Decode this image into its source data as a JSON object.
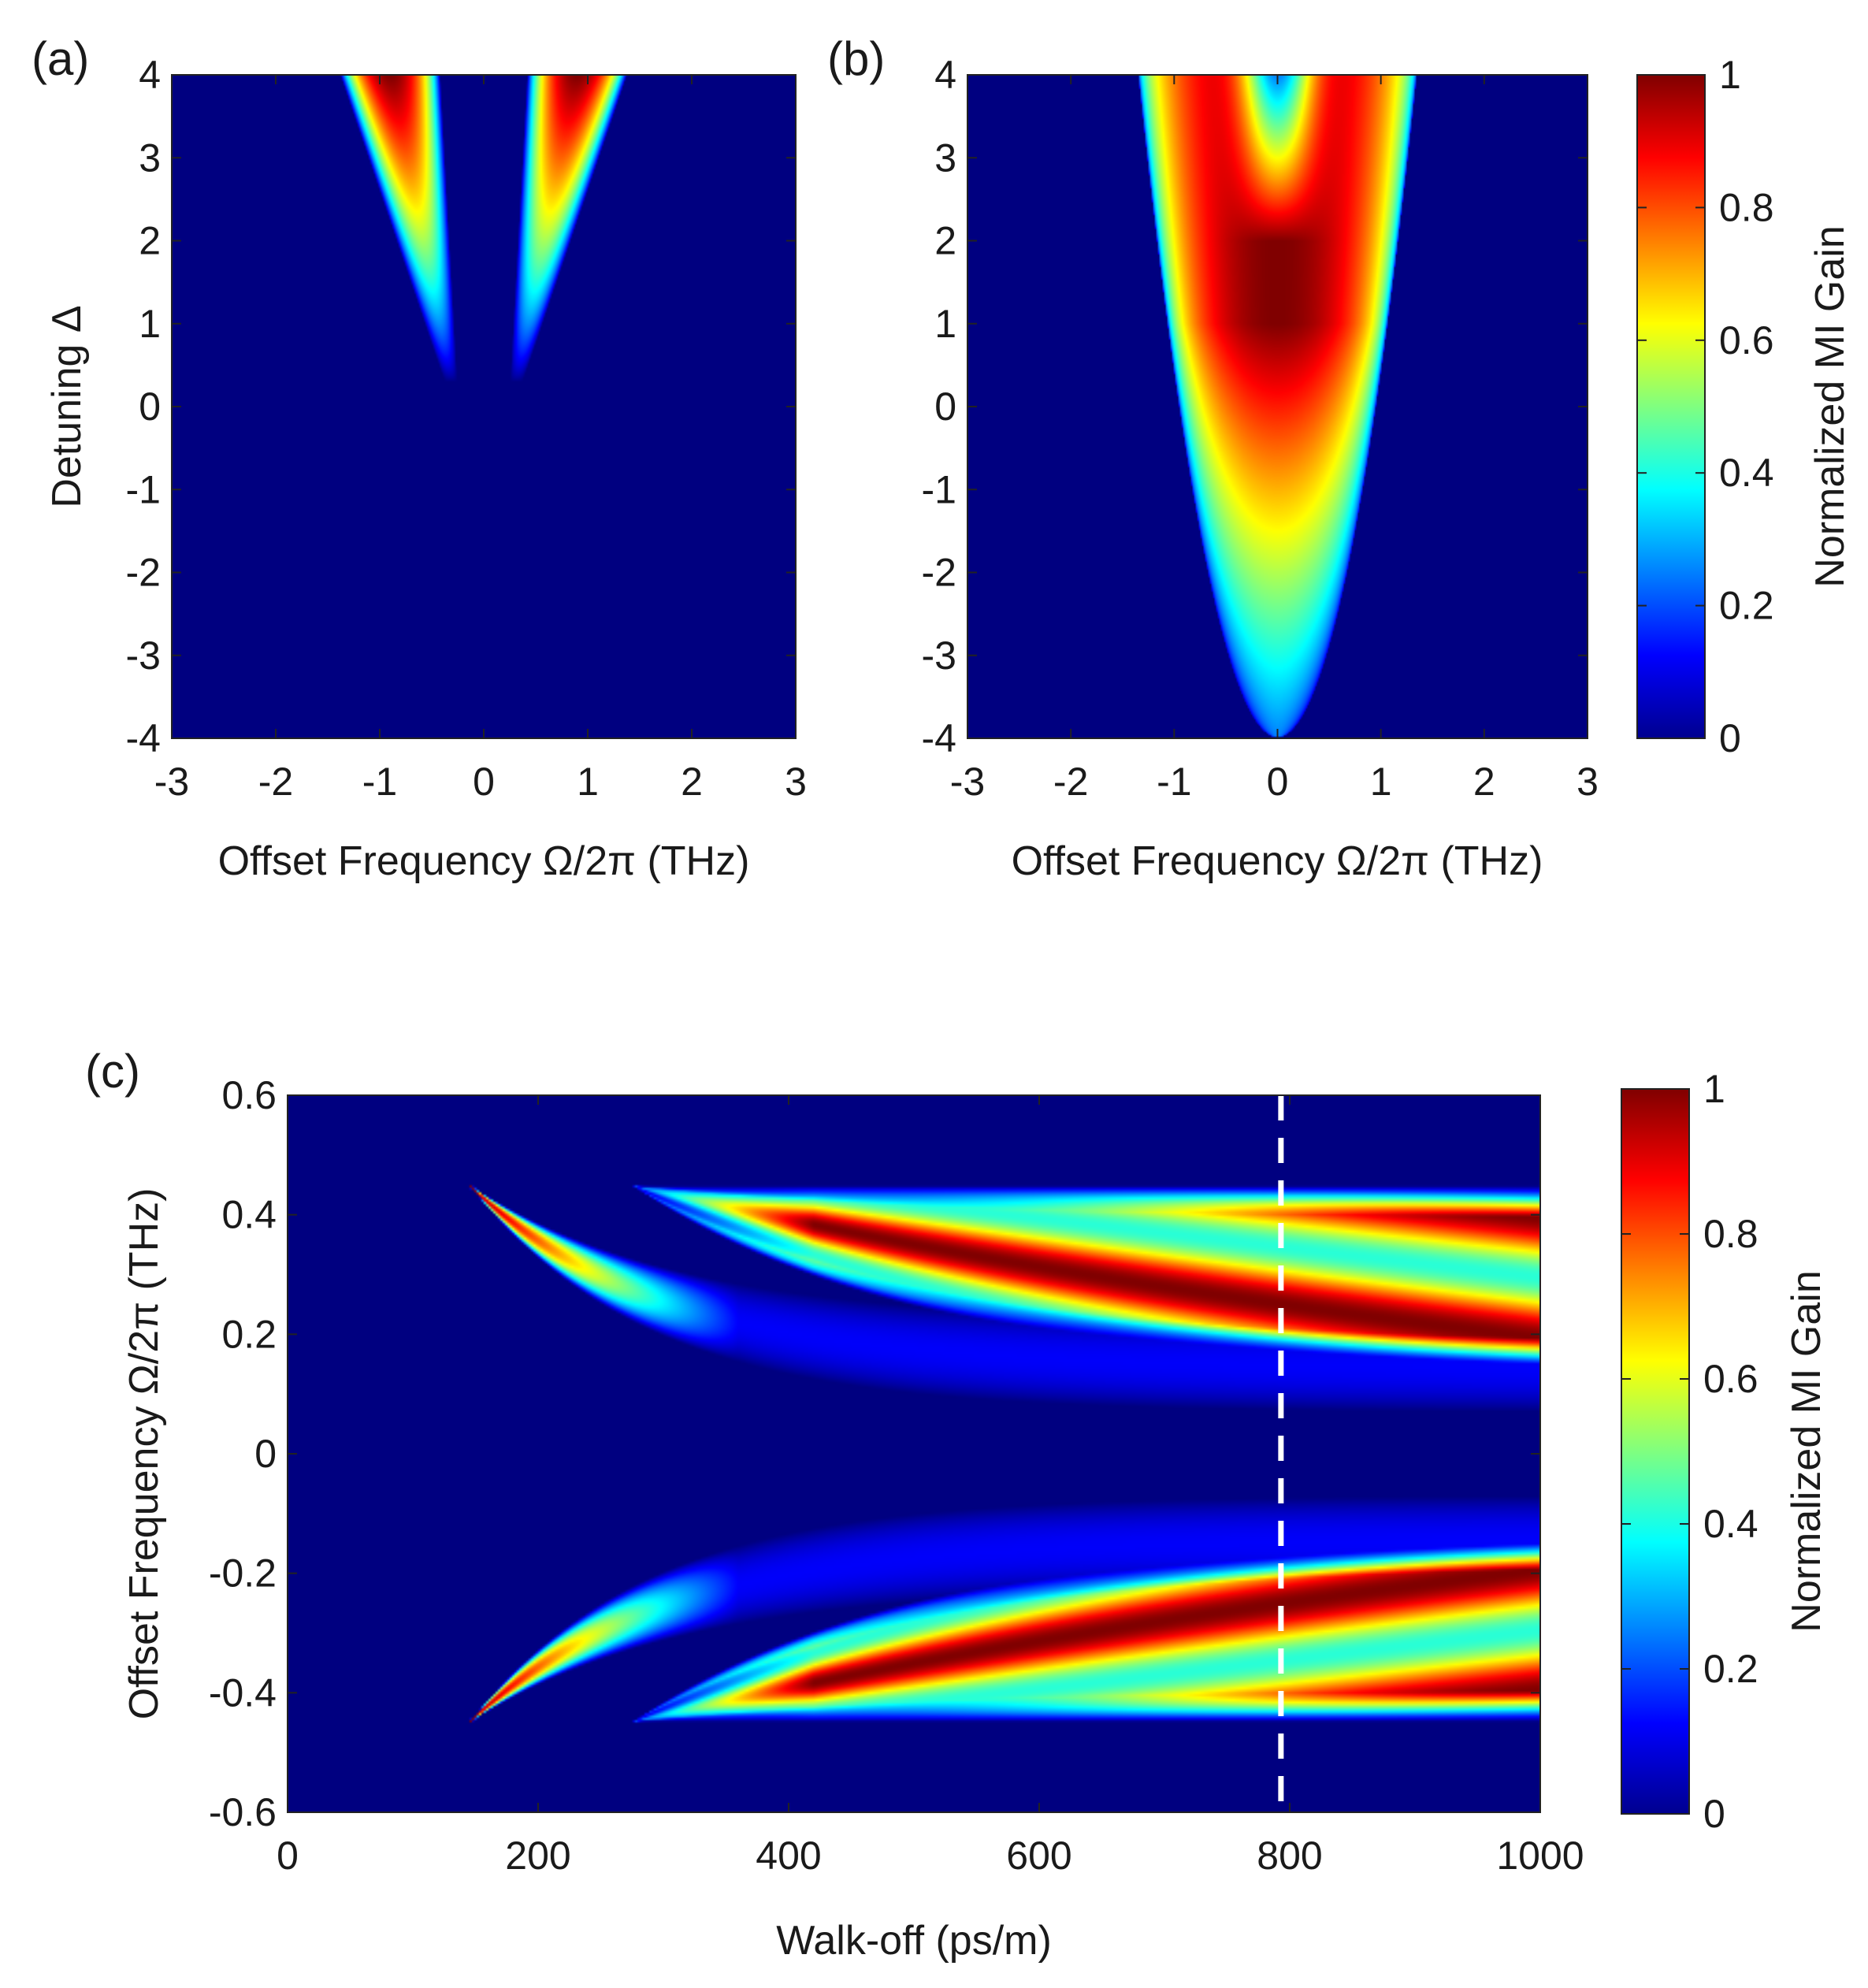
{
  "chart_data": [
    {
      "panel": "(a)",
      "type": "heatmap",
      "xlabel": "Offset Frequency  Ω/2π  (THz)",
      "ylabel": "Detuning  Δ",
      "xlim": [
        -3,
        3
      ],
      "ylim": [
        -4,
        4
      ],
      "x_ticks": [
        "-3",
        "-2",
        "-1",
        "0",
        "1",
        "2",
        "3"
      ],
      "y_ticks": [
        "4",
        "3",
        "2",
        "1",
        "0",
        "-1",
        "-2",
        "-3",
        "-4"
      ],
      "description_of_data": "Two gain lobes centred near ±0.9 THz at Δ=4, narrowing and fading toward Δ≈0.3; zero gain near Ω=0 and for Δ<0.3",
      "lobes": [
        {
          "peak_center_x": -0.9,
          "peak_y": 4,
          "onset_y": 0.3,
          "peak_value": 1.0
        },
        {
          "peak_center_x": 0.9,
          "peak_y": 4,
          "onset_y": 0.3,
          "peak_value": 1.0
        }
      ]
    },
    {
      "panel": "(b)",
      "type": "heatmap",
      "xlabel": "Offset Frequency  Ω/2π  (THz)",
      "ylabel": "",
      "xlim": [
        -3,
        3
      ],
      "ylim": [
        -4,
        4
      ],
      "x_ticks": [
        "-3",
        "-2",
        "-1",
        "0",
        "1",
        "2",
        "3"
      ],
      "y_ticks": [
        "4",
        "3",
        "2",
        "1",
        "0",
        "-1",
        "-2",
        "-3",
        "-4"
      ],
      "description_of_data": "Single parabolic gain region, edges from Ω≈±1.35 THz at Δ=4 down to Ω=0 at Δ=-4; maximum (1.0) near centre, small dip at Ω=0 for Δ>2",
      "edge_half_width_at_top": 1.35,
      "vertex_y": -4,
      "peak_value": 1.0
    },
    {
      "panel": "(c)",
      "type": "heatmap",
      "xlabel": "Walk-off  (ps/m)",
      "ylabel": "Offset Frequency  Ω/2π  (THz)",
      "xlim": [
        0,
        1000
      ],
      "ylim": [
        -0.6,
        0.6
      ],
      "x_ticks": [
        "0",
        "200",
        "400",
        "600",
        "800",
        "1000"
      ],
      "y_ticks": [
        "0.6",
        "0.4",
        "0.2",
        "0",
        "-0.2",
        "-0.4",
        "-0.6"
      ],
      "description_of_data": "Symmetric gain bands: first band starts at ~145 ps/m (|Ω|≈0.45), second at ~275 ps/m; bands curve toward |Ω|≈0.07–0.4 as walk-off increases",
      "bands": [
        {
          "onset_walkoff": 145,
          "onset_freq": 0.45,
          "end_walkoff": 1000,
          "end_freq_inner": 0.07,
          "end_freq_outer": 0.13
        },
        {
          "onset_walkoff": 275,
          "onset_freq": 0.45,
          "end_walkoff": 1000,
          "end_freq_inner": 0.13,
          "end_freq_outer": 0.45
        }
      ],
      "marker_line": {
        "walkoff": 793,
        "style": "dashed",
        "color": "#ffffff"
      }
    }
  ],
  "colorbars": [
    {
      "title": "Normalized MI Gain",
      "range": [
        0,
        1
      ],
      "ticks": [
        "1",
        "0.8",
        "0.6",
        "0.4",
        "0.2",
        "0"
      ]
    },
    {
      "title": "Normalized MI Gain",
      "range": [
        0,
        1
      ],
      "ticks": [
        "1",
        "0.8",
        "0.6",
        "0.4",
        "0.2",
        "0"
      ]
    }
  ],
  "colormap": "jet"
}
